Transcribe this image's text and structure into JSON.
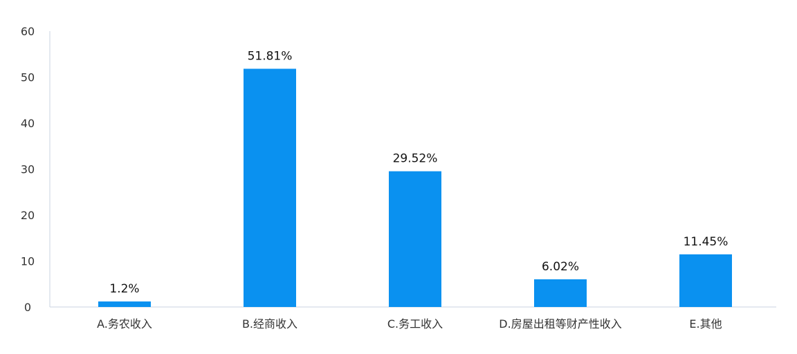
{
  "chart_data": {
    "type": "bar",
    "categories": [
      "A.务农收入",
      "B.经商收入",
      "C.务工收入",
      "D.房屋出租等财产性收入",
      "E.其他"
    ],
    "values": [
      1.2,
      51.81,
      29.52,
      6.02,
      11.45
    ],
    "data_labels": [
      "1.2%",
      "51.81%",
      "29.52%",
      "6.02%",
      "11.45%"
    ],
    "y_ticks": [
      "0",
      "10",
      "20",
      "30",
      "40",
      "50",
      "60"
    ],
    "ylim": [
      0,
      60
    ],
    "grid": false,
    "bar_color": "#0a91f0",
    "axis_color": "#c9d3e0"
  }
}
